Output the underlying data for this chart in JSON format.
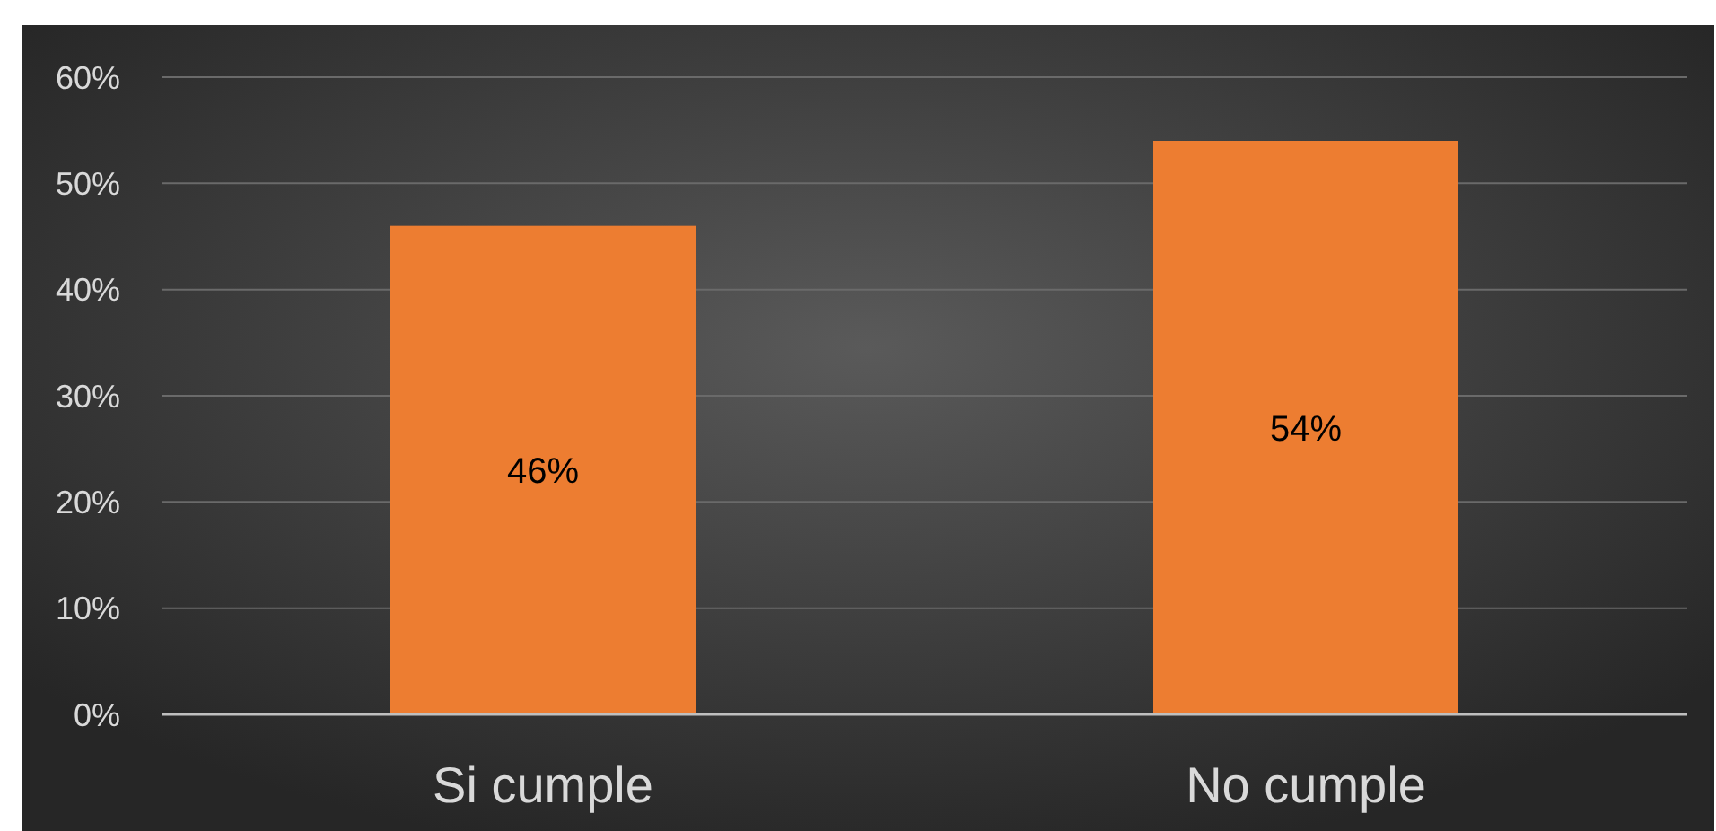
{
  "chart_data": {
    "type": "bar",
    "categories": [
      "Si cumple",
      "No cumple"
    ],
    "values": [
      46,
      54
    ],
    "color": "#ed7d31",
    "value_labels": [
      "46%",
      "54%"
    ],
    "ylim": [
      0,
      60
    ],
    "yticks": [
      {
        "value": 0,
        "label": "0%"
      },
      {
        "value": 10,
        "label": "10%"
      },
      {
        "value": 20,
        "label": "20%"
      },
      {
        "value": 30,
        "label": "30%"
      },
      {
        "value": 40,
        "label": "40%"
      },
      {
        "value": 50,
        "label": "50%"
      },
      {
        "value": 60,
        "label": "60%"
      }
    ],
    "grid": "y"
  }
}
